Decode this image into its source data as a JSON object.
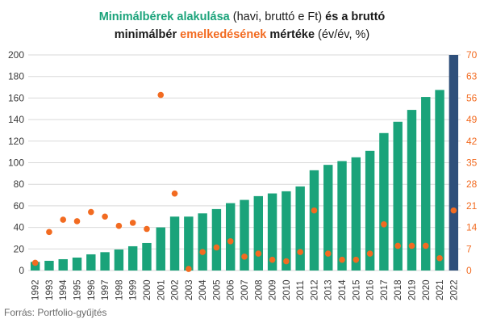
{
  "title": {
    "line1_part1": "Minimálbérek alakulása",
    "line1_part2": "(havi, bruttó e Ft)",
    "line1_part3": "és a bruttó",
    "line2_part1": "minimálbér",
    "line2_part2": "emelkedésének",
    "line2_part3": "mértéke",
    "line2_part4": "(év/év, %)"
  },
  "source": "Forrás: Portfolio-gyűjtés",
  "colors": {
    "bar": "#1aa37a",
    "bar_highlight": "#2e4f7a",
    "dot": "#f26b21",
    "grid": "#d9d9d9",
    "right_axis": "#f26b21"
  },
  "chart_data": {
    "type": "bar",
    "categories": [
      "1992",
      "1993",
      "1994",
      "1995",
      "1996",
      "1997",
      "1998",
      "1999",
      "2000",
      "2001",
      "2002",
      "2003",
      "2004",
      "2005",
      "2006",
      "2007",
      "2008",
      "2009",
      "2010",
      "2011",
      "2012",
      "2013",
      "2014",
      "2015",
      "2016",
      "2017",
      "2018",
      "2019",
      "2020",
      "2021",
      "2022"
    ],
    "left_axis": {
      "ylim": [
        0,
        200
      ],
      "ticks": [
        "0",
        "20",
        "40",
        "60",
        "80",
        "100",
        "120",
        "140",
        "160",
        "180",
        "200"
      ]
    },
    "right_axis": {
      "ylim": [
        0,
        70
      ],
      "ticks": [
        "0",
        "7",
        "14",
        "21",
        "28",
        "35",
        "42",
        "49",
        "56",
        "63",
        "70"
      ]
    },
    "series": [
      {
        "type": "bar",
        "axis": "left",
        "values": [
          8,
          9,
          10.5,
          12,
          15,
          17,
          19.5,
          22.5,
          25.5,
          40,
          50,
          50,
          53,
          57,
          62.5,
          65.5,
          69,
          71.5,
          73.5,
          78,
          93,
          98,
          101.5,
          105,
          111,
          127.5,
          138,
          149,
          161,
          167.5,
          200
        ],
        "highlight_index": 30
      },
      {
        "type": "scatter",
        "axis": "right",
        "values": [
          2.5,
          12.5,
          16.5,
          16,
          19,
          17.5,
          14.5,
          15.5,
          13.5,
          57,
          25,
          0.5,
          6,
          7.5,
          9.5,
          4.5,
          5.5,
          3.5,
          3,
          6,
          19.5,
          5.5,
          3.5,
          3.5,
          5.5,
          15,
          8,
          8,
          8,
          4,
          19.5
        ]
      }
    ]
  }
}
